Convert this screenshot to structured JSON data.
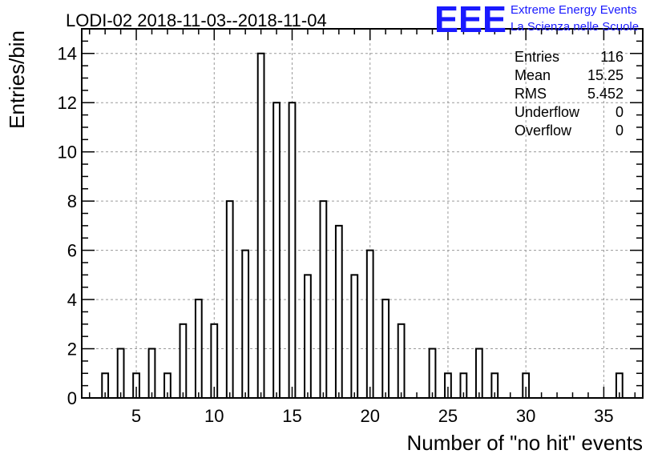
{
  "chart_data": {
    "type": "bar",
    "title": "LODI-02 2018-11-03--2018-11-04",
    "xlabel": "Number of \"no hit\" events",
    "ylabel": "Entries/bin",
    "xlim": [
      1.5,
      37.5
    ],
    "ylim": [
      0,
      15
    ],
    "x_ticks": [
      5,
      10,
      15,
      20,
      25,
      30,
      35
    ],
    "y_ticks": [
      0,
      2,
      4,
      6,
      8,
      10,
      12,
      14
    ],
    "grid": true,
    "bin_centers": [
      3,
      4,
      5,
      6,
      7,
      8,
      9,
      10,
      11,
      12,
      13,
      14,
      15,
      16,
      17,
      18,
      19,
      20,
      21,
      22,
      23,
      24,
      25,
      26,
      27,
      28,
      29,
      30,
      31,
      32,
      33,
      34,
      35,
      36
    ],
    "values": [
      1,
      2,
      1,
      2,
      1,
      3,
      4,
      3,
      8,
      6,
      14,
      12,
      12,
      5,
      8,
      7,
      5,
      6,
      4,
      3,
      0,
      2,
      1,
      1,
      2,
      1,
      0,
      1,
      0,
      0,
      0,
      0,
      0,
      1
    ]
  },
  "stats": [
    {
      "label": "Entries",
      "value": "116"
    },
    {
      "label": "Mean",
      "value": "15.25"
    },
    {
      "label": "RMS",
      "value": "5.452"
    },
    {
      "label": "Underflow",
      "value": "0"
    },
    {
      "label": "Overflow",
      "value": "0"
    }
  ],
  "logo": {
    "mark": "EEE",
    "line1": "Extreme Energy Events",
    "line2": "La Scienza nelle Scuole",
    "color": "#1a1aff"
  }
}
